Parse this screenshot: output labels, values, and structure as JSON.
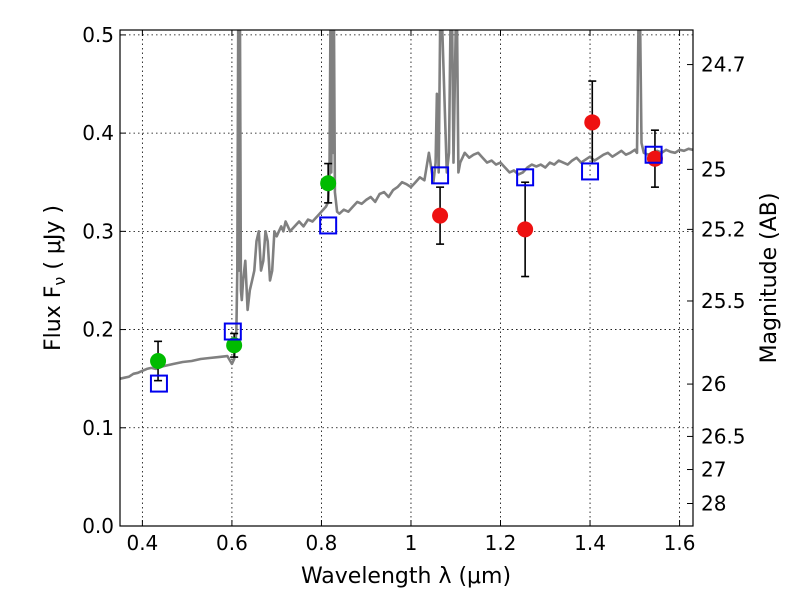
{
  "chart_data": {
    "type": "scatter",
    "xlabel": "Wavelength  λ (μm)",
    "ylabel": "Flux  F",
    "ylabel_sub": "ν",
    "ylabel_units": "  ( μJy )",
    "y2label": "Magnitude (AB)",
    "xlim": [
      0.35,
      1.63
    ],
    "ylim": [
      0.0,
      0.505
    ],
    "x_ticks": [
      0.4,
      0.6,
      0.8,
      1.0,
      1.2,
      1.4,
      1.6
    ],
    "x_tick_labels": [
      "0.4",
      "0.6",
      "0.8",
      "1",
      "1.2",
      "1.4",
      "1.6"
    ],
    "y_ticks": [
      0.0,
      0.1,
      0.2,
      0.3,
      0.4,
      0.5
    ],
    "y_tick_labels": [
      "0.0",
      "0.1",
      "0.2",
      "0.3",
      "0.4",
      "0.5"
    ],
    "y2_ticks": [
      {
        "label": "24.7",
        "flux": 0.4698
      },
      {
        "label": "25",
        "flux": 0.3631
      },
      {
        "label": "25.2",
        "flux": 0.302
      },
      {
        "label": "25.5",
        "flux": 0.2291
      },
      {
        "label": "26",
        "flux": 0.1445
      },
      {
        "label": "26.5",
        "flux": 0.0912
      },
      {
        "label": "27",
        "flux": 0.0575
      },
      {
        "label": "28",
        "flux": 0.0229
      }
    ],
    "grid": true,
    "series": [
      {
        "kind": "line",
        "color": "#808080",
        "x": [
          0.35,
          0.36,
          0.37,
          0.38,
          0.39,
          0.4,
          0.41,
          0.42,
          0.43,
          0.44,
          0.45,
          0.47,
          0.49,
          0.51,
          0.53,
          0.55,
          0.57,
          0.59,
          0.6,
          0.605,
          0.61,
          0.612,
          0.614,
          0.616,
          0.618,
          0.62,
          0.622,
          0.625,
          0.63,
          0.635,
          0.64,
          0.645,
          0.65,
          0.655,
          0.66,
          0.665,
          0.67,
          0.675,
          0.68,
          0.685,
          0.69,
          0.695,
          0.7,
          0.705,
          0.71,
          0.715,
          0.72,
          0.725,
          0.73,
          0.74,
          0.75,
          0.76,
          0.77,
          0.78,
          0.79,
          0.8,
          0.81,
          0.815,
          0.818,
          0.82,
          0.822,
          0.824,
          0.826,
          0.828,
          0.83,
          0.835,
          0.84,
          0.85,
          0.86,
          0.87,
          0.88,
          0.89,
          0.9,
          0.91,
          0.92,
          0.93,
          0.94,
          0.95,
          0.96,
          0.97,
          0.98,
          0.99,
          1.0,
          1.01,
          1.02,
          1.03,
          1.04,
          1.05,
          1.055,
          1.058,
          1.062,
          1.065,
          1.07,
          1.08,
          1.085,
          1.088,
          1.092,
          1.095,
          1.1,
          1.103,
          1.106,
          1.11,
          1.115,
          1.12,
          1.13,
          1.14,
          1.15,
          1.16,
          1.17,
          1.18,
          1.19,
          1.2,
          1.21,
          1.22,
          1.23,
          1.24,
          1.25,
          1.26,
          1.27,
          1.28,
          1.29,
          1.3,
          1.31,
          1.32,
          1.33,
          1.34,
          1.35,
          1.36,
          1.37,
          1.38,
          1.39,
          1.4,
          1.41,
          1.42,
          1.43,
          1.44,
          1.45,
          1.46,
          1.47,
          1.48,
          1.49,
          1.5,
          1.505,
          1.508,
          1.512,
          1.515,
          1.52,
          1.53,
          1.54,
          1.55,
          1.56,
          1.57,
          1.58,
          1.59,
          1.6,
          1.61,
          1.62,
          1.63
        ],
        "y": [
          0.15,
          0.151,
          0.152,
          0.155,
          0.156,
          0.158,
          0.16,
          0.161,
          0.16,
          0.162,
          0.163,
          0.165,
          0.167,
          0.168,
          0.17,
          0.171,
          0.172,
          0.173,
          0.165,
          0.17,
          0.2,
          0.26,
          0.505,
          0.26,
          0.505,
          0.24,
          0.23,
          0.25,
          0.27,
          0.22,
          0.24,
          0.25,
          0.26,
          0.29,
          0.3,
          0.26,
          0.27,
          0.3,
          0.29,
          0.25,
          0.26,
          0.3,
          0.295,
          0.3,
          0.305,
          0.3,
          0.31,
          0.305,
          0.3,
          0.305,
          0.31,
          0.305,
          0.312,
          0.31,
          0.315,
          0.32,
          0.325,
          0.33,
          0.36,
          0.505,
          0.36,
          0.505,
          0.38,
          0.505,
          0.34,
          0.32,
          0.318,
          0.322,
          0.32,
          0.325,
          0.33,
          0.328,
          0.332,
          0.335,
          0.33,
          0.338,
          0.34,
          0.335,
          0.342,
          0.345,
          0.35,
          0.348,
          0.345,
          0.35,
          0.355,
          0.352,
          0.38,
          0.35,
          0.37,
          0.44,
          0.36,
          0.505,
          0.505,
          0.36,
          0.38,
          0.505,
          0.505,
          0.37,
          0.505,
          0.505,
          0.36,
          0.37,
          0.375,
          0.38,
          0.375,
          0.378,
          0.38,
          0.375,
          0.37,
          0.372,
          0.368,
          0.37,
          0.365,
          0.36,
          0.362,
          0.358,
          0.36,
          0.365,
          0.368,
          0.366,
          0.368,
          0.365,
          0.37,
          0.368,
          0.372,
          0.37,
          0.368,
          0.372,
          0.375,
          0.37,
          0.373,
          0.376,
          0.372,
          0.375,
          0.378,
          0.38,
          0.376,
          0.379,
          0.382,
          0.378,
          0.38,
          0.383,
          0.38,
          0.505,
          0.505,
          0.39,
          0.38,
          0.378,
          0.38,
          0.382,
          0.38,
          0.383,
          0.381,
          0.38,
          0.383,
          0.382,
          0.384,
          0.383
        ]
      },
      {
        "kind": "circle",
        "color": "#00bb00",
        "x": [
          0.435,
          0.605,
          0.815
        ],
        "y": [
          0.168,
          0.184,
          0.349
        ],
        "err": [
          0.02,
          0.012,
          0.02
        ]
      },
      {
        "kind": "circle",
        "color": "#ee1111",
        "x": [
          1.065,
          1.255,
          1.405,
          1.545
        ],
        "y": [
          0.316,
          0.302,
          0.411,
          0.374
        ],
        "err": [
          0.029,
          0.048,
          0.042,
          0.029
        ]
      },
      {
        "kind": "square",
        "color": "#0000ee",
        "x": [
          0.437,
          0.602,
          0.815,
          1.065,
          1.255,
          1.4,
          1.542
        ],
        "y": [
          0.145,
          0.198,
          0.306,
          0.357,
          0.355,
          0.361,
          0.378
        ]
      }
    ]
  }
}
